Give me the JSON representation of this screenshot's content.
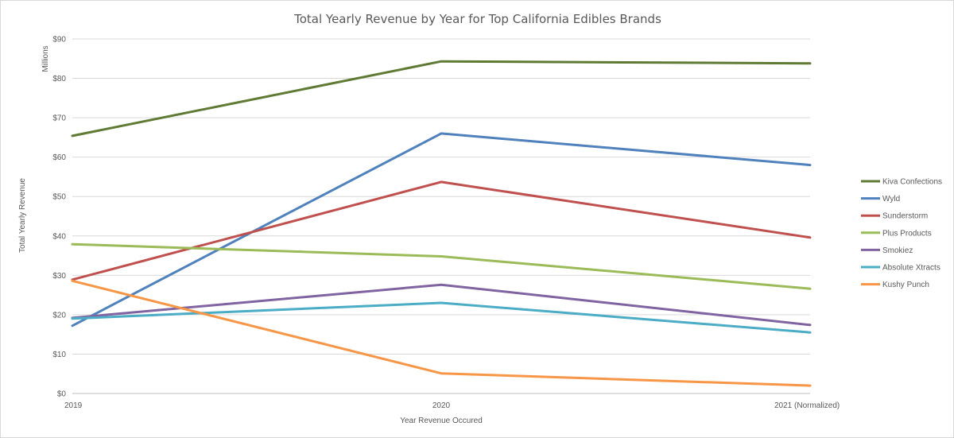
{
  "chart_data": {
    "type": "line",
    "title": "Total Yearly Revenue by Year for Top California Edibles Brands",
    "xlabel": "Year Revenue Occured",
    "ylabel": "Total Yearly Revenue",
    "y_units_label": "Millions",
    "categories": [
      "2019",
      "2020",
      "2021 (Normalized)"
    ],
    "ylim": [
      0,
      90
    ],
    "y_ticks": [
      "$0",
      "$10",
      "$20",
      "$30",
      "$40",
      "$50",
      "$60",
      "$70",
      "$80",
      "$90"
    ],
    "grid": true,
    "legend_position": "right",
    "series": [
      {
        "name": "Kiva Confections",
        "color": "#5e7a33",
        "values": [
          65.4,
          84.3,
          83.8
        ]
      },
      {
        "name": "Wyld",
        "color": "#4f81bd",
        "values": [
          17.2,
          66.0,
          58.0
        ]
      },
      {
        "name": "Sunderstorm",
        "color": "#c0504d",
        "values": [
          28.9,
          53.7,
          39.6
        ]
      },
      {
        "name": "Plus Products",
        "color": "#9bbb59",
        "values": [
          37.9,
          34.8,
          26.6
        ]
      },
      {
        "name": "Smokiez",
        "color": "#8064a2",
        "values": [
          19.2,
          27.6,
          17.4
        ]
      },
      {
        "name": "Absolute Xtracts",
        "color": "#4bacc6",
        "values": [
          19.0,
          23.0,
          15.5
        ]
      },
      {
        "name": "Kushy Punch",
        "color": "#f79646",
        "values": [
          28.6,
          5.1,
          2.0
        ]
      }
    ]
  }
}
